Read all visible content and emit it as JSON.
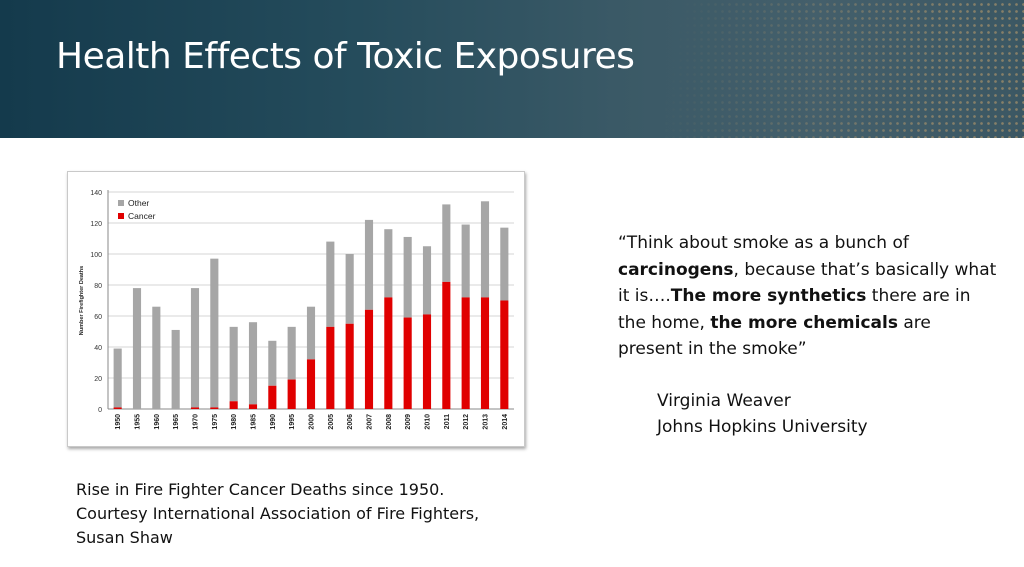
{
  "slide": {
    "title": "Health Effects of Toxic Exposures"
  },
  "chart_data": {
    "type": "bar",
    "stacked": true,
    "categories": [
      "1950",
      "1955",
      "1960",
      "1965",
      "1970",
      "1975",
      "1980",
      "1985",
      "1990",
      "1995",
      "2000",
      "2005",
      "2006",
      "2007",
      "2008",
      "2009",
      "2010",
      "2011",
      "2012",
      "2013",
      "2014"
    ],
    "series": [
      {
        "name": "Cancer",
        "color": "#e00000",
        "values": [
          1,
          0,
          0,
          0,
          1,
          1,
          5,
          3,
          15,
          19,
          32,
          53,
          55,
          64,
          72,
          59,
          61,
          82,
          72,
          72,
          70
        ]
      },
      {
        "name": "Other",
        "color": "#a6a6a6",
        "values": [
          38,
          78,
          66,
          51,
          77,
          96,
          48,
          53,
          29,
          34,
          34,
          55,
          45,
          58,
          44,
          52,
          44,
          50,
          47,
          62,
          47
        ]
      }
    ],
    "legend_order": [
      "Other",
      "Cancer"
    ],
    "ylabel": "Number Firefighter Deaths",
    "xlabel": "",
    "ylim": [
      0,
      140
    ],
    "yticks": [
      0,
      20,
      40,
      60,
      80,
      100,
      120,
      140
    ],
    "grid": true,
    "legend_position": "top-left"
  },
  "caption": {
    "line1": "Rise in Fire Fighter Cancer Deaths since 1950.",
    "line2": "Courtesy International Association of Fire Fighters,",
    "line3": "Susan Shaw"
  },
  "quote": {
    "p1": "“Think about smoke as a bunch of ",
    "b1": "carcinogens",
    "p2": ", because that’s basically what it is….",
    "b2": "The more synthetics",
    "p3": " there are in the home, ",
    "b3": "the more chemicals",
    "p4": " are present in the smoke”"
  },
  "attribution": {
    "name": "Virginia Weaver",
    "affiliation": "Johns Hopkins University"
  }
}
